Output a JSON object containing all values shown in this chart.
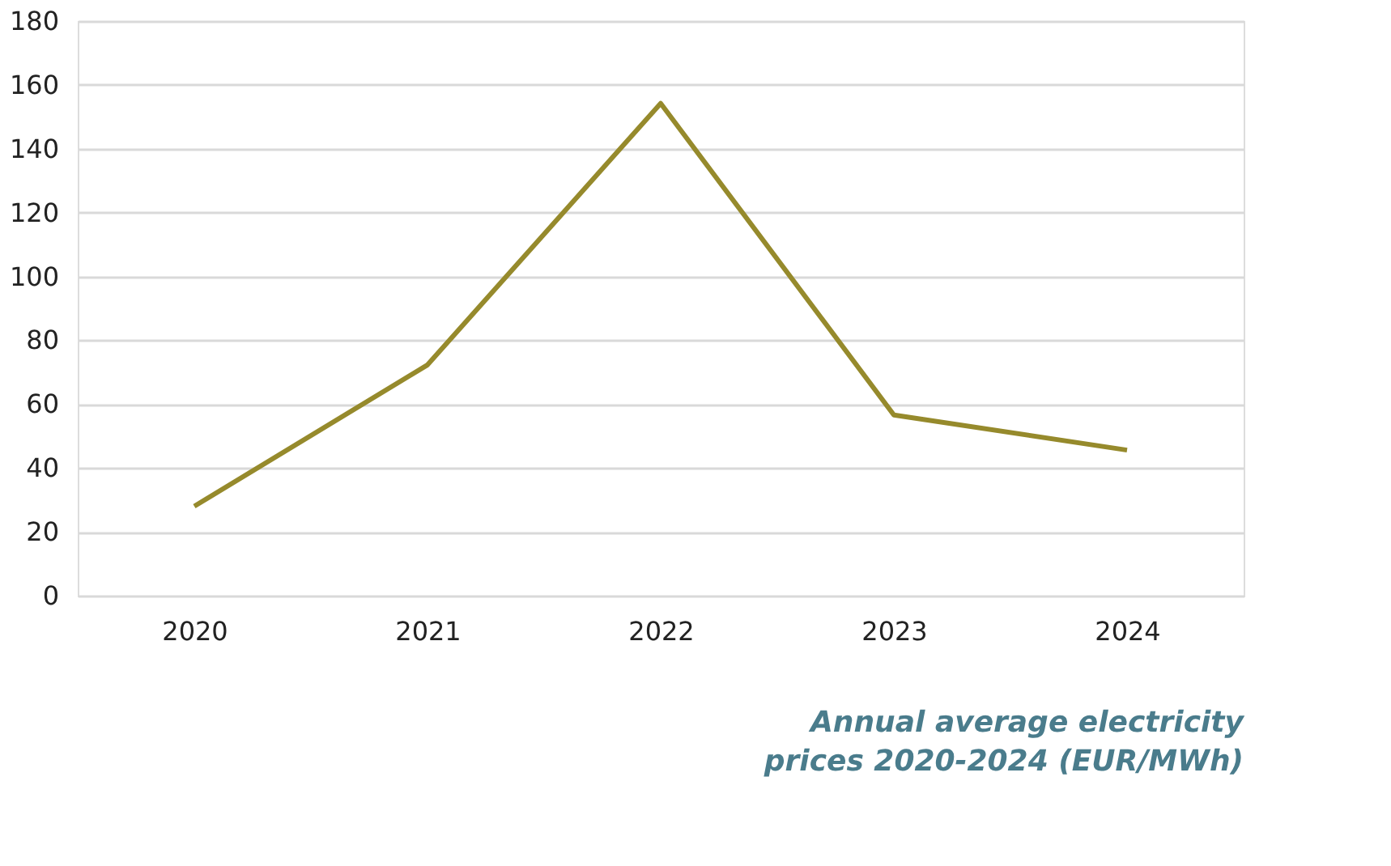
{
  "chart_data": {
    "type": "line",
    "title": "Annual average electricity\nprices 2020-2024 (EUR/MWh)",
    "categories": [
      "2020",
      "2021",
      "2022",
      "2023",
      "2024"
    ],
    "series": [
      {
        "color": "#968a2c",
        "values": [
          28,
          72.3,
          154.2,
          56.6,
          45.6
        ]
      }
    ],
    "ylim": [
      0,
      180
    ],
    "yticks": [
      0,
      20,
      40,
      60,
      80,
      100,
      120,
      140,
      160,
      180
    ],
    "grid": "y",
    "legend": false,
    "marker": "none",
    "line_style": "solid"
  }
}
